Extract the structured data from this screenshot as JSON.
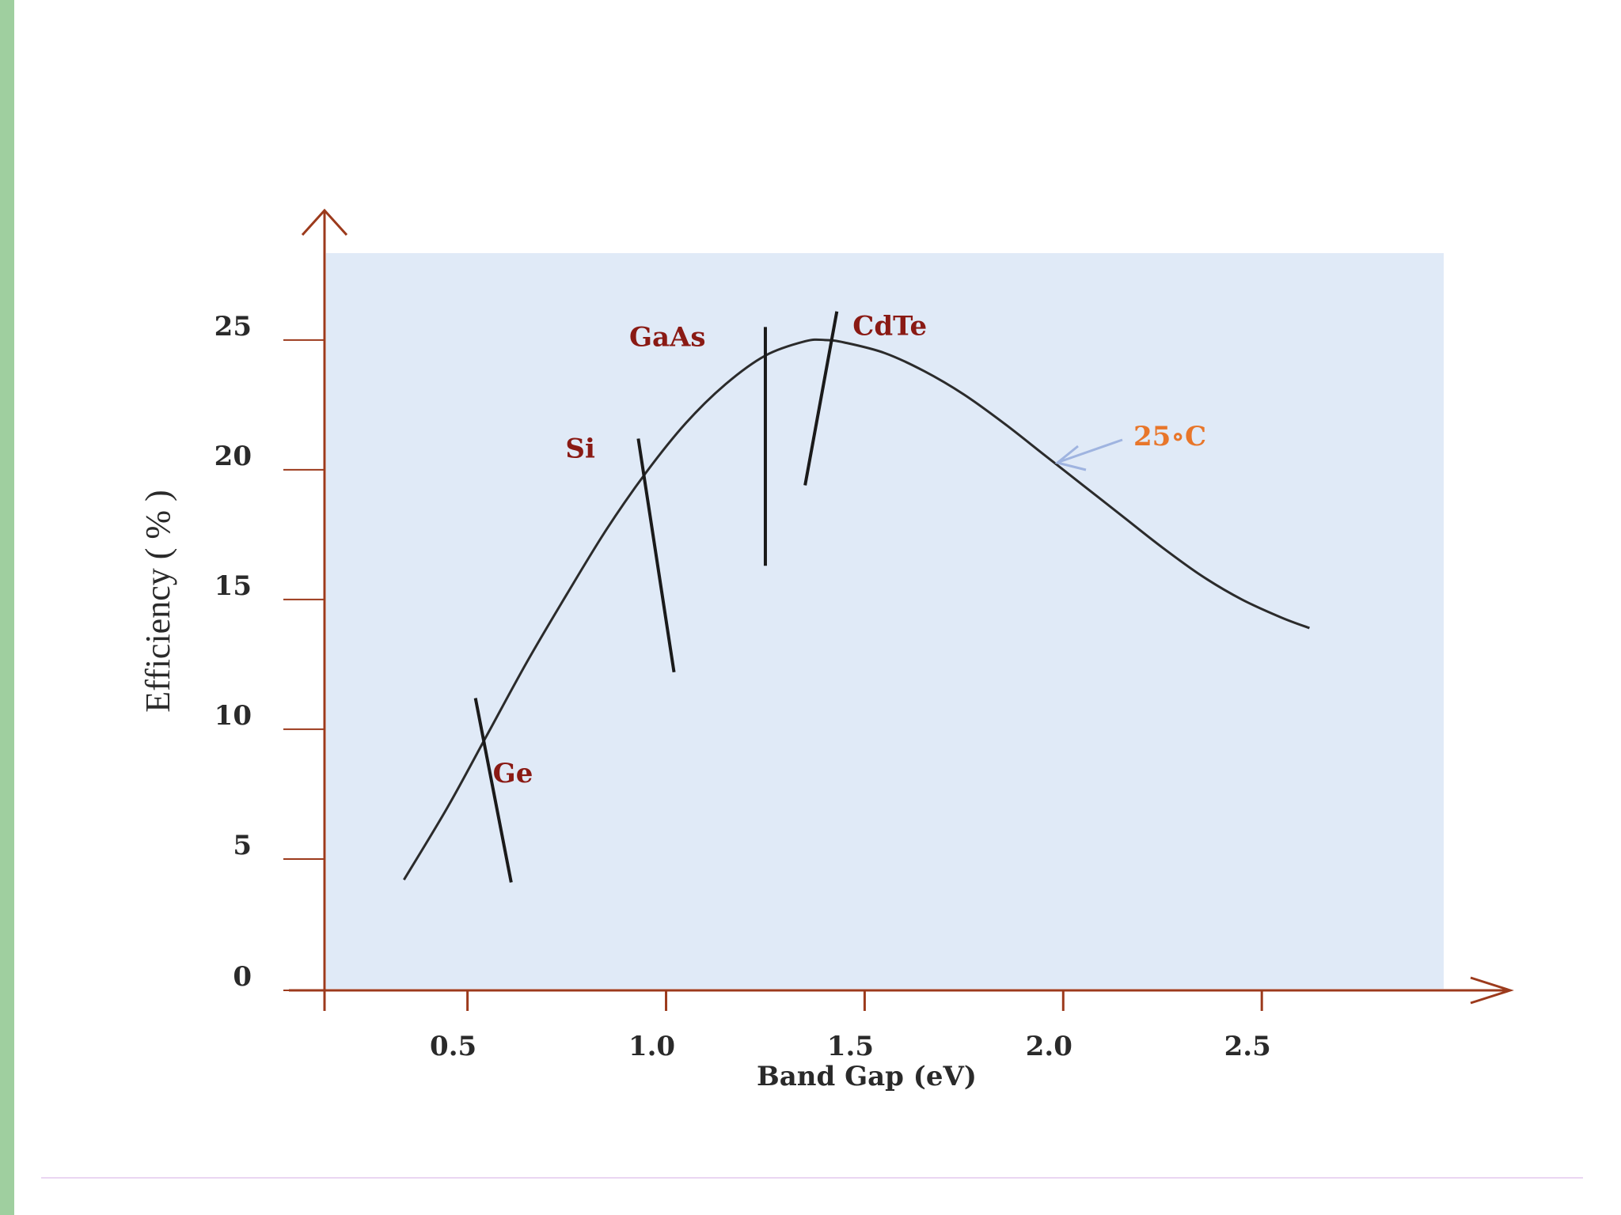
{
  "chart_data": {
    "type": "line",
    "title": "",
    "xlabel": "Band Gap (eV)",
    "ylabel": "Efficiency ( % )",
    "xlim": [
      0.14,
      2.96
    ],
    "ylim": [
      0,
      28.5
    ],
    "x_ticks": [
      {
        "value": 0.5,
        "label": "0.5"
      },
      {
        "value": 1.0,
        "label": "1.0"
      },
      {
        "value": 1.5,
        "label": "1.5"
      },
      {
        "value": 2.0,
        "label": "2.0"
      },
      {
        "value": 2.5,
        "label": "2.5"
      }
    ],
    "y_ticks": [
      {
        "value": 0,
        "label": "0"
      },
      {
        "value": 5,
        "label": "5"
      },
      {
        "value": 10,
        "label": "10"
      },
      {
        "value": 15,
        "label": "15"
      },
      {
        "value": 20,
        "label": "20"
      },
      {
        "value": 25,
        "label": "25"
      }
    ],
    "series": [
      {
        "name": "",
        "label": "25°C",
        "x": [
          0.34,
          0.45,
          0.55,
          0.65,
          0.75,
          0.85,
          0.95,
          1.05,
          1.15,
          1.25,
          1.35,
          1.4,
          1.45,
          1.55,
          1.65,
          1.75,
          1.85,
          1.95,
          2.05,
          2.15,
          2.25,
          2.35,
          2.45,
          2.55,
          2.62
        ],
        "y": [
          4.2,
          7.0,
          9.8,
          12.6,
          15.2,
          17.7,
          19.9,
          21.8,
          23.3,
          24.4,
          24.95,
          25.0,
          24.9,
          24.5,
          23.8,
          22.9,
          21.8,
          20.6,
          19.4,
          18.2,
          17.0,
          15.9,
          15.0,
          14.3,
          13.9
        ]
      }
    ],
    "annotations": [
      {
        "label": "Ge",
        "marker": {
          "x1": 0.52,
          "y1": 11.2,
          "x2": 0.61,
          "y2": 4.1
        }
      },
      {
        "label": "Si",
        "marker": {
          "x1": 0.93,
          "y1": 21.2,
          "x2": 1.02,
          "y2": 12.2
        }
      },
      {
        "label": "GaAs",
        "marker": {
          "x1": 1.25,
          "y1": 25.5,
          "x2": 1.25,
          "y2": 16.3
        }
      },
      {
        "label": "CdTe",
        "marker": {
          "x1": 1.43,
          "y1": 26.1,
          "x2": 1.35,
          "y2": 19.4
        }
      }
    ],
    "temperature_label": "25∘C",
    "colors": {
      "plot_background": "#e0eaf7",
      "axis": "#9c3a1c",
      "curve": "#2b2b2b",
      "material_label": "#8a1a14",
      "temperature_label": "#e8762a",
      "arrow": "#9fb4e0"
    },
    "grid": false,
    "legend": "none"
  }
}
